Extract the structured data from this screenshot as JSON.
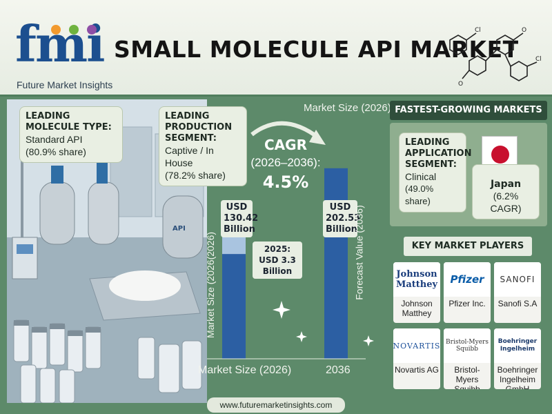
{
  "header": {
    "logo_text": "fmi",
    "logo_subtitle": "Future Market Insights",
    "title": "SMALL MOLECULE API MARKET"
  },
  "callouts": {
    "molecule_type": {
      "heading": "LEADING MOLECULE TYPE:",
      "value": "Standard API",
      "share": "(80.9% share)"
    },
    "production_segment": {
      "heading": "LEADING PRODUCTION SEGMENT:",
      "value": "Captive / In House",
      "share": "(78.2% share)"
    }
  },
  "scene": {
    "vessel_label": "API"
  },
  "chart": {
    "top_caption": "Market Size (2026)",
    "cagr_title": "CAGR",
    "cagr_period": "(2026–2036):",
    "cagr_value": "4.5%",
    "bar1_label": "USD 130.42 Billion",
    "bar1_axis": "Market Size (2026)",
    "bar1_vertical": "Market Size (2026(2026)",
    "bar2_label": "USD 202.53 Billion",
    "bar2_axis": "2036",
    "bar2_vertical": "Forecast Value (2036)",
    "note_2025": "2025: USD 3.3 Billion",
    "colors": {
      "bar": "#2c5fa3",
      "bar_light": "#a9c4e0"
    }
  },
  "chart_data": {
    "type": "bar",
    "categories": [
      "Market Size (2026)",
      "2036"
    ],
    "values": [
      130.42,
      202.53
    ],
    "ylim": [
      0,
      220
    ]
  },
  "fastest": {
    "heading": "FASTEST-GROWING MARKETS",
    "app_heading": "LEADING APPLICATION SEGMENT:",
    "app_value": "Clinical",
    "app_share": "(49.0% share)",
    "country": "Japan",
    "country_cagr": "(6.2% CAGR)"
  },
  "players": {
    "heading": "KEY MARKET PLAYERS",
    "items": [
      {
        "logo": "Johnson Matthey",
        "name": "Johnson Matthey"
      },
      {
        "logo": "Pfizer",
        "name": "Pfizer Inc."
      },
      {
        "logo": "SANOFI",
        "name": "Sanofi S.A"
      },
      {
        "logo": "NOVARTIS",
        "name": "Novartis AG"
      },
      {
        "logo": "Bristol-Myers Squibb",
        "name": "Bristol-Myers Squibb"
      },
      {
        "logo": "Boehringer Ingelheim",
        "name": "Boehringer Ingelheim GmbH"
      }
    ]
  },
  "footer": {
    "url": "www.futuremarketinsights.com"
  }
}
